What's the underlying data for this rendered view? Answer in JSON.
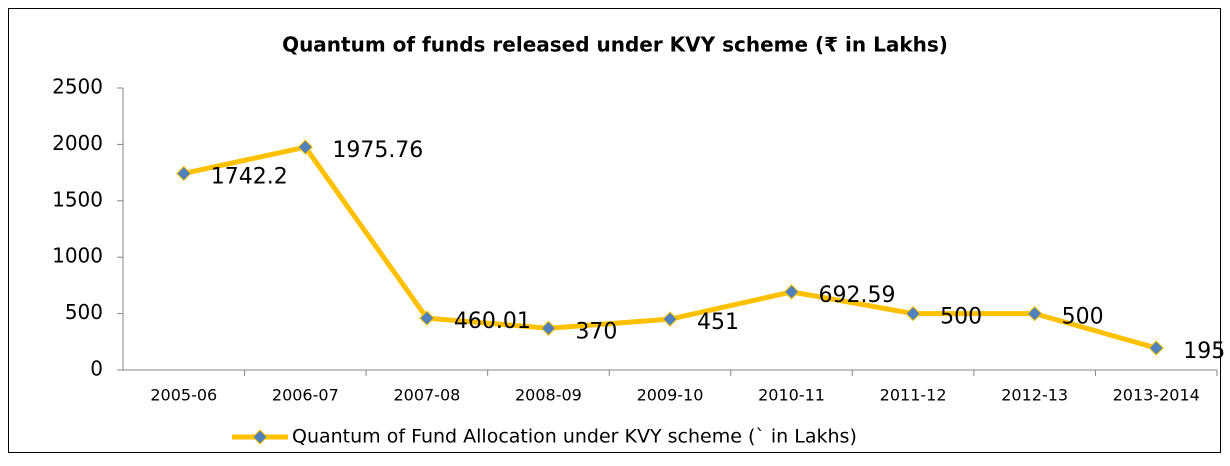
{
  "chart_data": {
    "type": "line",
    "title": "Quantum of funds released under KVY scheme (₹ in Lakhs)",
    "categories": [
      "2005-06",
      "2006-07",
      "2007-08",
      "2008-09",
      "2009-10",
      "2010-11",
      "2011-12",
      "2012-13",
      "2013-2014"
    ],
    "series": [
      {
        "name": "Quantum of Fund Allocation under KVY scheme (` in Lakhs)",
        "color": "#ffc000",
        "marker_color": "#4f81bd",
        "values": [
          1742.2,
          1975.76,
          460.01,
          370,
          451,
          692.59,
          500,
          500,
          195
        ]
      }
    ],
    "ylim": [
      0,
      2500
    ],
    "yticks": [
      0,
      500,
      1000,
      1500,
      2000,
      2500
    ],
    "legend": "bottom"
  }
}
